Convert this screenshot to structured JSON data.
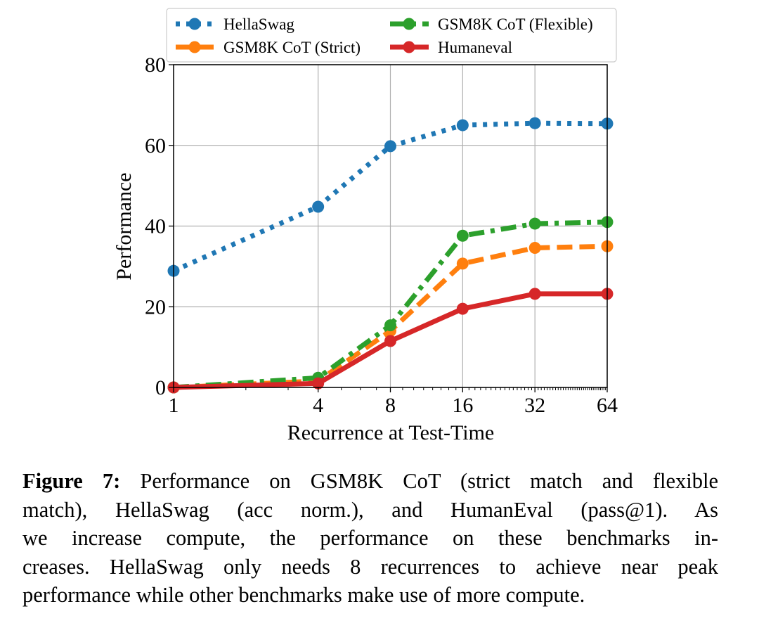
{
  "chart_data": {
    "type": "line",
    "title": "",
    "xlabel": "Recurrence at Test-Time",
    "ylabel": "Performance",
    "x_scale": "log2",
    "x": [
      1,
      4,
      8,
      16,
      32,
      64
    ],
    "x_ticks": [
      "1",
      "4",
      "8",
      "16",
      "32",
      "64"
    ],
    "xlim": [
      1,
      64
    ],
    "ylim": [
      0,
      80
    ],
    "y_ticks": [
      "0",
      "20",
      "40",
      "60",
      "80"
    ],
    "y_tick_values": [
      0,
      20,
      40,
      60,
      80
    ],
    "grid": true,
    "legend_placement": "top, 2 columns",
    "series": [
      {
        "name": "HellaSwag",
        "color": "#1f77b4",
        "style": "dotted",
        "values": [
          28.9,
          44.8,
          59.8,
          65.0,
          65.5,
          65.4
        ]
      },
      {
        "name": "GSM8K CoT (Strict)",
        "color": "#ff7f0e",
        "style": "dashed",
        "values": [
          0.0,
          1.6,
          14.0,
          30.7,
          34.6,
          35.0
        ]
      },
      {
        "name": "GSM8K CoT (Flexible)",
        "color": "#2ca02c",
        "style": "dashdot",
        "values": [
          0.0,
          2.4,
          15.4,
          37.6,
          40.6,
          41.0
        ]
      },
      {
        "name": "Humaneval",
        "color": "#d62728",
        "style": "solid",
        "values": [
          0.0,
          1.0,
          11.5,
          19.5,
          23.2,
          23.2
        ]
      }
    ]
  },
  "caption": {
    "label": "Figure 7:",
    "lines": [
      " Performance on GSM8K CoT (strict match and flexible",
      "match), HellaSwag (acc norm.), and HumanEval (pass@1).  As",
      "we increase compute, the performance on these benchmarks in-",
      "creases. HellaSwag only needs 8 recurrences to achieve near peak",
      "performance while other benchmarks make use of more compute."
    ]
  }
}
